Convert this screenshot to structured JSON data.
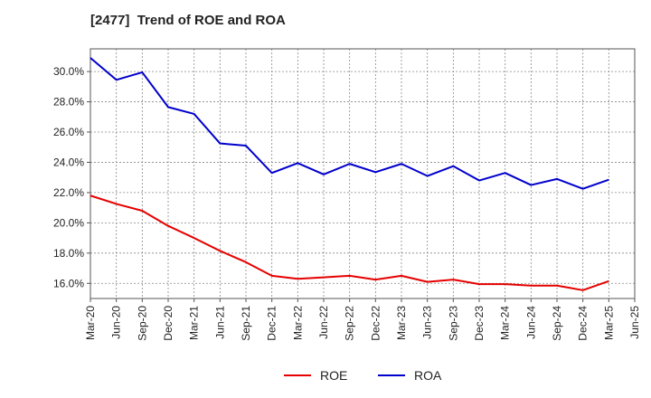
{
  "chart_data": {
    "type": "line",
    "title": "[2477]  Trend of ROE and ROA",
    "xlabel": "",
    "ylabel": "",
    "x": [
      "Mar-20",
      "Jun-20",
      "Sep-20",
      "Dec-20",
      "Mar-21",
      "Jun-21",
      "Sep-21",
      "Dec-21",
      "Mar-22",
      "Jun-22",
      "Sep-22",
      "Dec-22",
      "Mar-23",
      "Jun-23",
      "Sep-23",
      "Dec-23",
      "Mar-24",
      "Jun-24",
      "Sep-24",
      "Dec-24",
      "Mar-25",
      "Jun-25"
    ],
    "ylim": [
      15.0,
      31.5
    ],
    "yticks": [
      16.0,
      18.0,
      20.0,
      22.0,
      24.0,
      26.0,
      28.0,
      30.0
    ],
    "ytick_labels": [
      "16.0%",
      "18.0%",
      "20.0%",
      "22.0%",
      "24.0%",
      "26.0%",
      "28.0%",
      "30.0%"
    ],
    "grid": true,
    "legend_position": "bottom-center",
    "series": [
      {
        "name": "ROE",
        "color": "#e60000",
        "values": [
          21.8,
          21.25,
          20.8,
          19.8,
          19.0,
          18.15,
          17.4,
          16.5,
          16.3,
          16.4,
          16.5,
          16.25,
          16.5,
          16.1,
          16.25,
          15.95,
          15.95,
          15.85,
          15.85,
          15.55,
          16.15,
          null
        ]
      },
      {
        "name": "ROA",
        "color": "#0000cc",
        "values": [
          30.9,
          29.45,
          29.95,
          27.65,
          27.2,
          25.25,
          25.1,
          23.3,
          23.95,
          23.2,
          23.9,
          23.35,
          23.9,
          23.1,
          23.75,
          22.8,
          23.3,
          22.5,
          22.9,
          22.25,
          22.85,
          null
        ]
      }
    ]
  }
}
